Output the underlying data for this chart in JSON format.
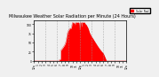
{
  "title": "Milwaukee Weather Solar Radiation per Minute (24 Hours)",
  "background_color": "#f0f0f0",
  "plot_bg_color": "#f0f0f0",
  "fill_color": "#ff0000",
  "line_color": "#dd0000",
  "legend_label": "Solar Rad.",
  "legend_color": "#ff0000",
  "grid_color": "#999999",
  "xlim": [
    0,
    1440
  ],
  "ylim": [
    0,
    110
  ],
  "title_fontsize": 3.5,
  "tick_fontsize": 2.2,
  "xtick_positions": [
    0,
    60,
    120,
    180,
    240,
    300,
    360,
    420,
    480,
    540,
    600,
    660,
    720,
    780,
    840,
    900,
    960,
    1020,
    1080,
    1140,
    1200,
    1260,
    1320,
    1380,
    1440
  ],
  "xtick_labels": [
    "12a",
    "1",
    "2",
    "3",
    "4",
    "5",
    "6",
    "7",
    "8",
    "9",
    "10",
    "11",
    "12p",
    "1",
    "2",
    "3",
    "4",
    "5",
    "6",
    "7",
    "8",
    "9",
    "10",
    "11",
    "12a"
  ],
  "ytick_positions": [
    0,
    25,
    50,
    75,
    100
  ],
  "ytick_labels": [
    "0",
    "25",
    "50",
    "75",
    "100"
  ]
}
